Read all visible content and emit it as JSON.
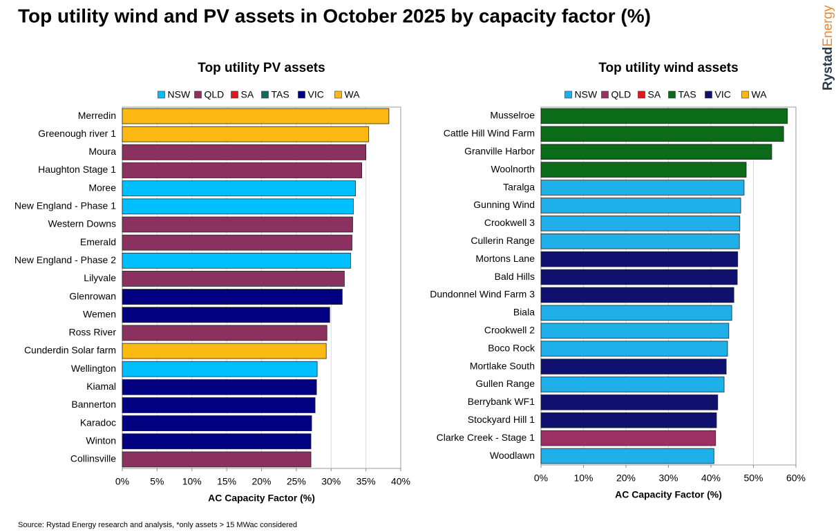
{
  "title": "Top utility wind and PV assets in October 2025 by capacity factor (%)",
  "source": "Source: Rystad Energy research and analysis, *only assets > 15 MWac considered",
  "brand": {
    "bold": "Rystad",
    "light": "Energy"
  },
  "chart_data": [
    {
      "type": "bar",
      "orientation": "horizontal",
      "title": "Top utility PV assets",
      "xlabel": "AC Capacity Factor (%)",
      "legend": [
        {
          "name": "NSW",
          "color": "#00bfff"
        },
        {
          "name": "QLD",
          "color": "#8b3160"
        },
        {
          "name": "SA",
          "color": "#e8141b"
        },
        {
          "name": "TAS",
          "color": "#0e6e5a"
        },
        {
          "name": "VIC",
          "color": "#000080"
        },
        {
          "name": "WA",
          "color": "#fdb913"
        }
      ],
      "categories": [
        "Merredin",
        "Greenough river 1",
        "Moura",
        "Haughton Stage 1",
        "Moree",
        "New England - Phase 1",
        "Western Downs",
        "Emerald",
        "New England - Phase 2",
        "Lilyvale",
        "Glenrowan",
        "Wemen",
        "Ross River",
        "Cunderdin Solar farm",
        "Wellington",
        "Kiamal",
        "Bannerton",
        "Karadoc",
        "Winton",
        "Collinsville"
      ],
      "values": [
        38.3,
        35.4,
        35.0,
        34.4,
        33.5,
        33.2,
        33.1,
        33.0,
        32.8,
        31.9,
        31.6,
        29.8,
        29.4,
        29.3,
        28.0,
        27.9,
        27.7,
        27.2,
        27.1,
        27.1
      ],
      "groups": [
        "WA",
        "WA",
        "QLD",
        "QLD",
        "NSW",
        "NSW",
        "QLD",
        "QLD",
        "NSW",
        "QLD",
        "VIC",
        "VIC",
        "QLD",
        "WA",
        "NSW",
        "VIC",
        "VIC",
        "VIC",
        "VIC",
        "QLD"
      ],
      "xlim": [
        0,
        40
      ],
      "xticks": [
        {
          "value": 0,
          "label": "0%"
        },
        {
          "value": 5,
          "label": "5%"
        },
        {
          "value": 10,
          "label": "10%"
        },
        {
          "value": 15,
          "label": "15%"
        },
        {
          "value": 20,
          "label": "20%"
        },
        {
          "value": 25,
          "label": "25%"
        },
        {
          "value": 30,
          "label": "30%"
        },
        {
          "value": 35,
          "label": "35%"
        },
        {
          "value": 40,
          "label": "40%"
        }
      ],
      "grid": true
    },
    {
      "type": "bar",
      "orientation": "horizontal",
      "title": "Top utility wind assets",
      "xlabel": "AC Capacity Factor (%)",
      "legend": [
        {
          "name": "NSW",
          "color": "#1fb0ea"
        },
        {
          "name": "QLD",
          "color": "#9b3064"
        },
        {
          "name": "SA",
          "color": "#e8141b"
        },
        {
          "name": "TAS",
          "color": "#0b6b18"
        },
        {
          "name": "VIC",
          "color": "#10106e"
        },
        {
          "name": "WA",
          "color": "#fdb913"
        }
      ],
      "categories": [
        "Musselroe",
        "Cattle Hill Wind Farm",
        "Granville Harbor",
        "Woolnorth",
        "Taralga",
        "Gunning Wind",
        "Crookwell 3",
        "Cullerin Range",
        "Mortons Lane",
        "Bald Hills",
        "Dundonnel Wind Farm 3",
        "Biala",
        "Crookwell 2",
        "Boco Rock",
        "Mortlake South",
        "Gullen Range",
        "Berrybank WF1",
        "Stockyard Hill 1",
        "Clarke Creek - Stage 1",
        "Woodlawn"
      ],
      "values": [
        58.0,
        57.1,
        54.3,
        48.3,
        47.8,
        47.0,
        46.8,
        46.7,
        46.3,
        46.2,
        45.4,
        44.9,
        44.2,
        43.9,
        43.6,
        43.1,
        41.6,
        41.3,
        41.1,
        40.7
      ],
      "groups": [
        "TAS",
        "TAS",
        "TAS",
        "TAS",
        "NSW",
        "NSW",
        "NSW",
        "NSW",
        "VIC",
        "VIC",
        "VIC",
        "NSW",
        "NSW",
        "NSW",
        "VIC",
        "NSW",
        "VIC",
        "VIC",
        "QLD",
        "NSW"
      ],
      "xlim": [
        0,
        60
      ],
      "xticks": [
        {
          "value": 0,
          "label": "0%"
        },
        {
          "value": 10,
          "label": "10%"
        },
        {
          "value": 20,
          "label": "20%"
        },
        {
          "value": 30,
          "label": "30%"
        },
        {
          "value": 40,
          "label": "40%"
        },
        {
          "value": 50,
          "label": "50%"
        },
        {
          "value": 60,
          "label": "60%"
        }
      ],
      "grid": true
    }
  ]
}
